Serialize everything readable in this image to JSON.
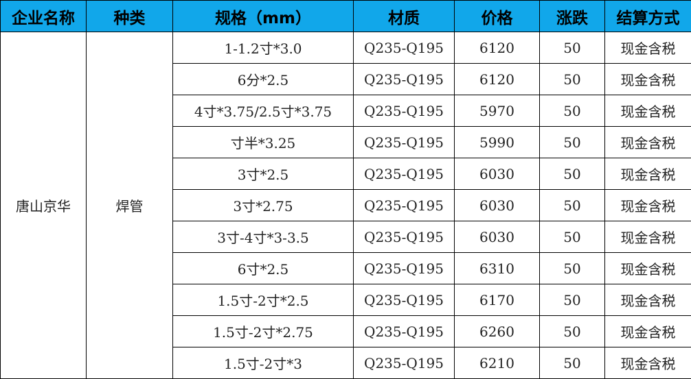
{
  "headers": [
    "企业名称",
    "种类",
    "规格（mm）",
    "材质",
    "价格",
    "涨跌",
    "结算方式"
  ],
  "company": "唐山京华",
  "category": "焊管",
  "rows": [
    {
      "spec": "1-1.2寸*3.0",
      "material": "Q235-Q195",
      "price": "6120",
      "change": "50",
      "settlement": "现金含税"
    },
    {
      "spec": "6分*2.5",
      "material": "Q235-Q195",
      "price": "6120",
      "change": "50",
      "settlement": "现金含税"
    },
    {
      "spec": "4寸*3.75/2.5寸*3.75",
      "material": "Q235-Q195",
      "price": "5970",
      "change": "50",
      "settlement": "现金含税"
    },
    {
      "spec": "寸半*3.25",
      "material": "Q235-Q195",
      "price": "5990",
      "change": "50",
      "settlement": "现金含税"
    },
    {
      "spec": "3寸*2.5",
      "material": "Q235-Q195",
      "price": "6030",
      "change": "50",
      "settlement": "现金含税"
    },
    {
      "spec": "3寸*2.75",
      "material": "Q235-Q195",
      "price": "6030",
      "change": "50",
      "settlement": "现金含税"
    },
    {
      "spec": "3寸-4寸*3-3.5",
      "material": "Q235-Q195",
      "price": "6030",
      "change": "50",
      "settlement": "现金含税"
    },
    {
      "spec": "6寸*2.5",
      "material": "Q235-Q195",
      "price": "6310",
      "change": "50",
      "settlement": "现金含税"
    },
    {
      "spec": "1.5寸-2寸*2.5",
      "material": "Q235-Q195",
      "price": "6170",
      "change": "50",
      "settlement": "现金含税"
    },
    {
      "spec": "1.5寸-2寸*2.75",
      "material": "Q235-Q195",
      "price": "6260",
      "change": "50",
      "settlement": "现金含税"
    },
    {
      "spec": "1.5寸-2寸*3",
      "material": "Q235-Q195",
      "price": "6210",
      "change": "50",
      "settlement": "现金含税"
    }
  ],
  "colors": {
    "header_bg": "#11a7ea"
  }
}
